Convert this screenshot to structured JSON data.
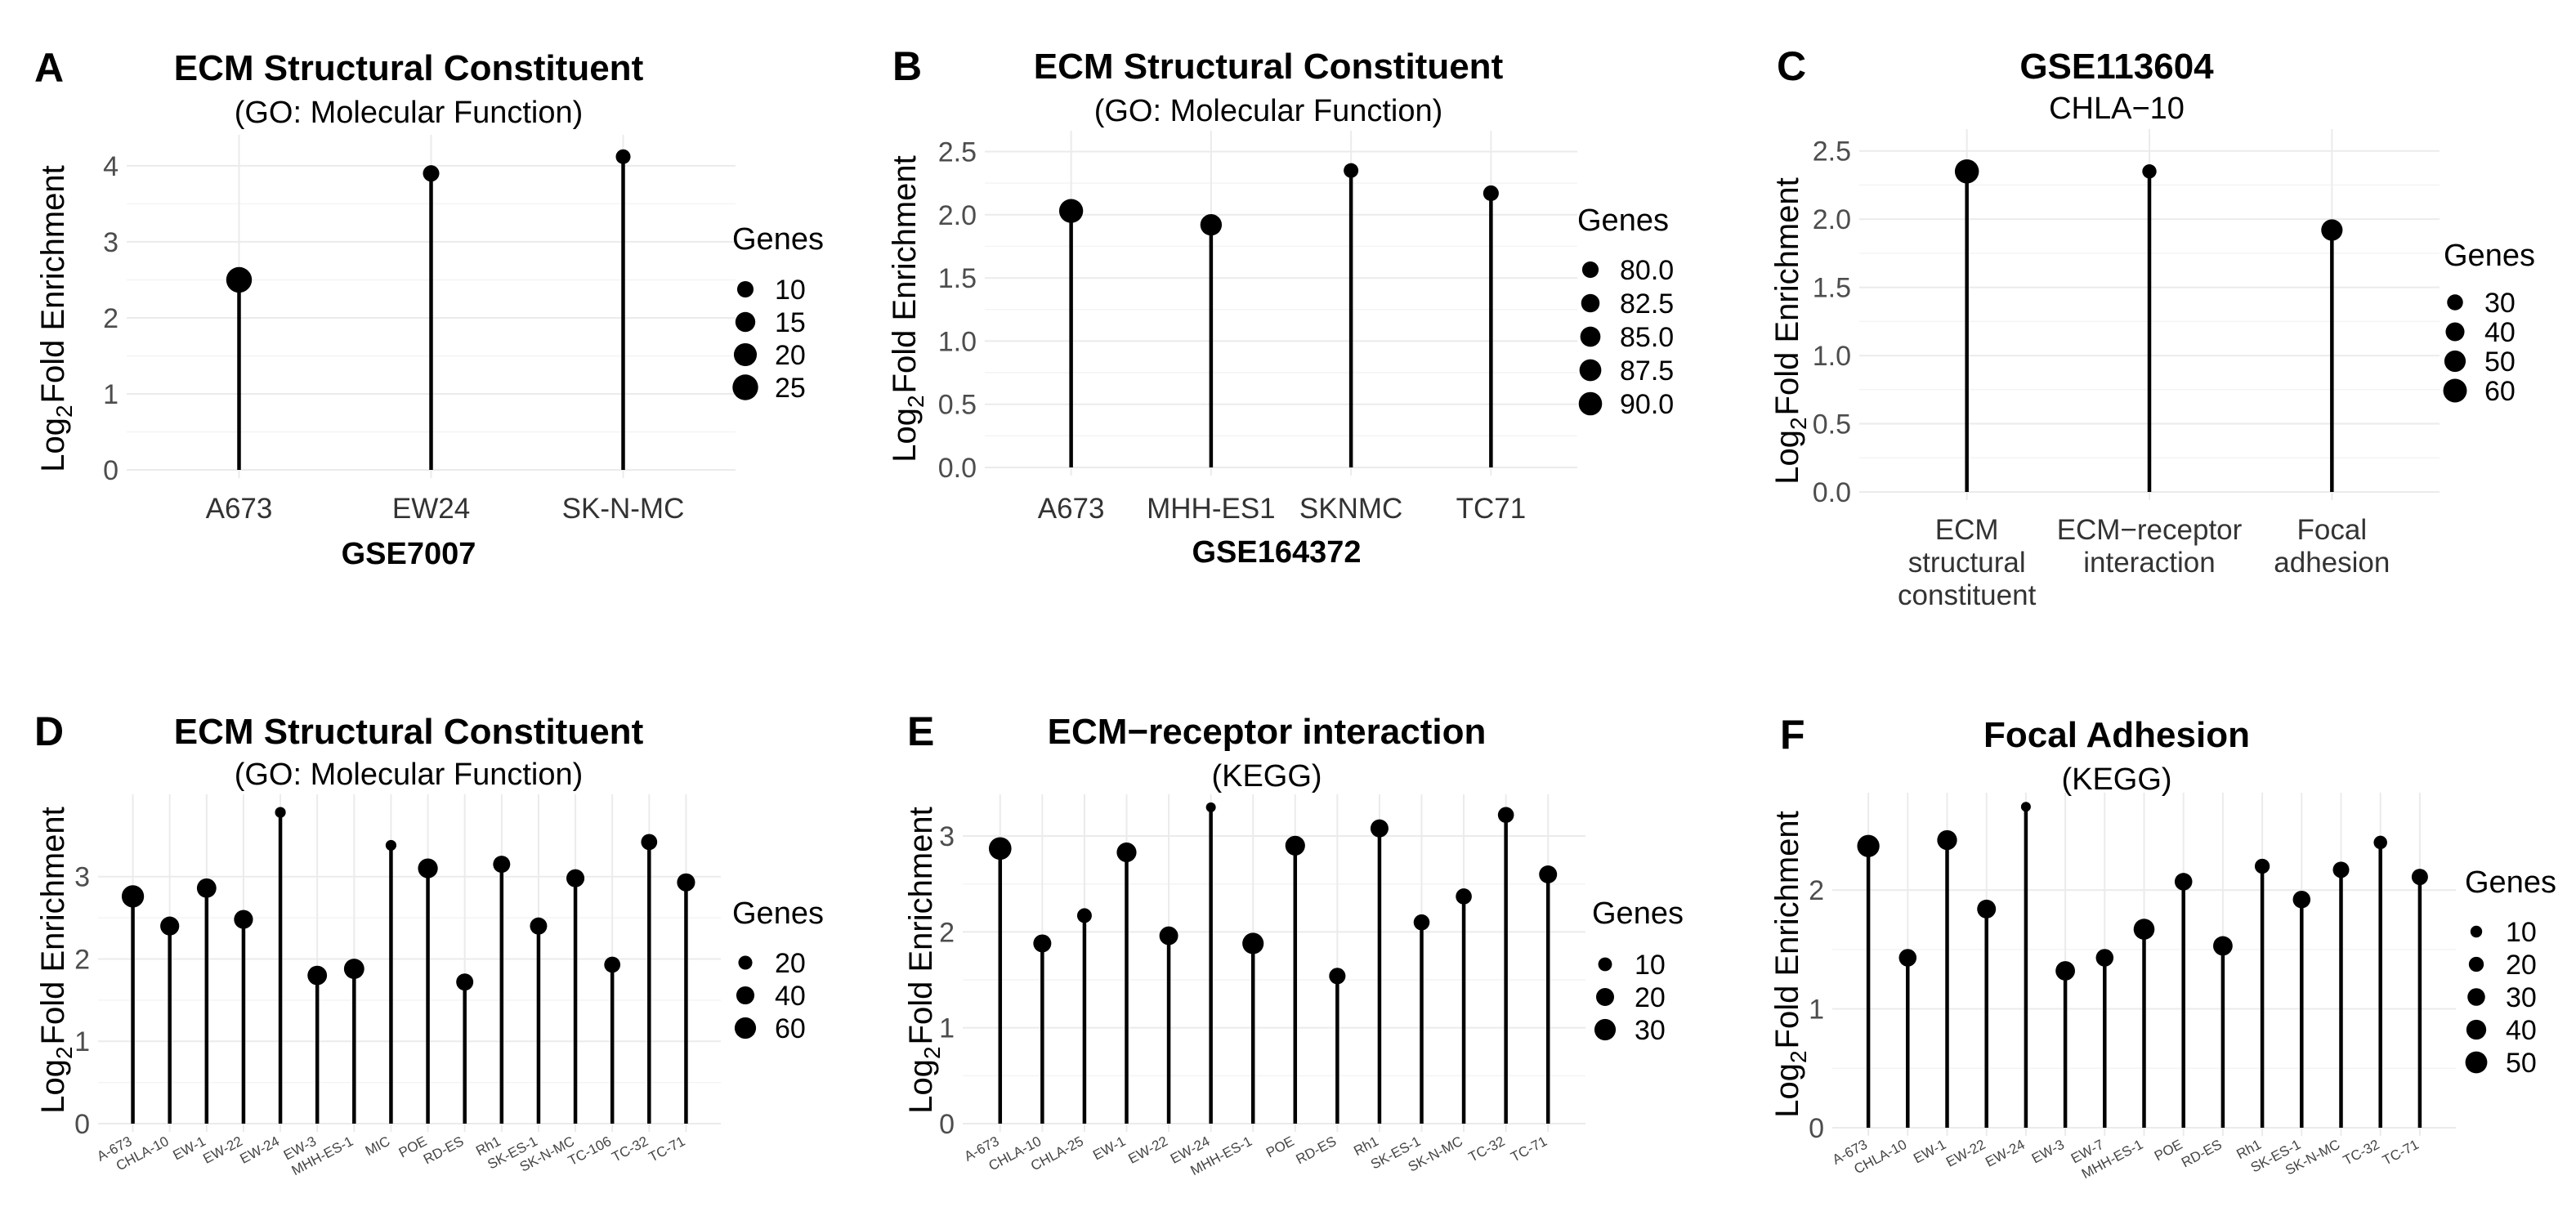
{
  "chart_data": [
    {
      "id": "A",
      "type": "lollipop",
      "letter": "A",
      "title": "ECM Structural Constituent",
      "subtitle": "(GO: Molecular Function)",
      "ylabel_prefix": "Log",
      "ylabel_sub": "2",
      "ylabel_suffix": "Fold Enrichment",
      "xlabel": "GSE7007",
      "ylim": [
        0,
        4.3
      ],
      "yticks": [
        0,
        1,
        2,
        3,
        4
      ],
      "ytick_labels": [
        "0",
        "1",
        "2",
        "3",
        "4"
      ],
      "categories": [
        "A673",
        "EW24",
        "SK-N-MC"
      ],
      "values": [
        2.5,
        3.9,
        4.12
      ],
      "genes": [
        25,
        10,
        8
      ],
      "size_domain": [
        8,
        26
      ],
      "legend": {
        "title": "Genes",
        "values": [
          10,
          15,
          20,
          25
        ],
        "labels": [
          "10",
          "15",
          "20",
          "25"
        ]
      }
    },
    {
      "id": "B",
      "type": "lollipop",
      "letter": "B",
      "title": "ECM Structural Constituent",
      "subtitle": "(GO: Molecular Function)",
      "ylabel_prefix": "Log",
      "ylabel_sub": "2",
      "ylabel_suffix": "Fold Enrichment",
      "xlabel": "GSE164372",
      "ylim": [
        0,
        2.6
      ],
      "yticks": [
        0,
        0.5,
        1,
        1.5,
        2,
        2.5
      ],
      "ytick_labels": [
        "0.0",
        "0.5",
        "1.0",
        "1.5",
        "2.0",
        "2.5"
      ],
      "categories": [
        "A673",
        "MHH-ES1",
        "SKNMC",
        "TC71"
      ],
      "values": [
        2.03,
        1.92,
        2.35,
        2.17
      ],
      "genes": [
        91,
        87,
        78,
        79
      ],
      "size_domain": [
        78,
        92
      ],
      "legend": {
        "title": "Genes",
        "values": [
          80,
          82.5,
          85,
          87.5,
          90
        ],
        "labels": [
          "80.0",
          "82.5",
          "85.0",
          "87.5",
          "90.0"
        ]
      }
    },
    {
      "id": "C",
      "type": "lollipop",
      "letter": "C",
      "title": "GSE113604",
      "subtitle": "CHLA−10",
      "title_plain_subtitle": true,
      "ylabel_prefix": "Log",
      "ylabel_sub": "2",
      "ylabel_suffix": "Fold Enrichment",
      "xlabel": "",
      "ylim": [
        0,
        2.6
      ],
      "yticks": [
        0,
        0.5,
        1,
        1.5,
        2,
        2.5
      ],
      "ytick_labels": [
        "0.0",
        "0.5",
        "1.0",
        "1.5",
        "2.0",
        "2.5"
      ],
      "categories": [
        "ECM structural constituent",
        "ECM−receptor interaction",
        "Focal adhesion"
      ],
      "category_lines": [
        [
          "ECM",
          "structural",
          "constituent"
        ],
        [
          "ECM−receptor",
          "interaction"
        ],
        [
          "Focal",
          "adhesion"
        ]
      ],
      "values": [
        2.35,
        2.35,
        1.92
      ],
      "genes": [
        62,
        25,
        50
      ],
      "size_domain": [
        22,
        64
      ],
      "legend": {
        "title": "Genes",
        "values": [
          30,
          40,
          50,
          60
        ],
        "labels": [
          "30",
          "40",
          "50",
          "60"
        ]
      }
    },
    {
      "id": "D",
      "type": "lollipop",
      "letter": "D",
      "title": "ECM Structural Constituent",
      "subtitle": "(GO: Molecular Function)",
      "ylabel_prefix": "Log",
      "ylabel_sub": "2",
      "ylabel_suffix": "Fold Enrichment",
      "xlabel": "",
      "small_ticks": true,
      "ylim": [
        0,
        3.9
      ],
      "yticks": [
        0,
        1,
        2,
        3
      ],
      "ytick_labels": [
        "0",
        "1",
        "2",
        "3"
      ],
      "categories": [
        "A-673",
        "CHLA-10",
        "EW-1",
        "EW-22",
        "EW-24",
        "EW-3",
        "MHH-ES-1",
        "MIC",
        "POE",
        "RD-ES",
        "Rh1",
        "SK-ES-1",
        "SK-N-MC",
        "TC-106",
        "TC-32",
        "TC-71"
      ],
      "values": [
        2.76,
        2.4,
        2.86,
        2.48,
        3.78,
        1.8,
        1.88,
        3.38,
        3.1,
        1.72,
        3.15,
        2.4,
        2.98,
        1.93,
        3.42,
        2.93
      ],
      "genes": [
        66,
        45,
        48,
        45,
        8,
        48,
        53,
        8,
        50,
        35,
        35,
        35,
        40,
        30,
        30,
        40
      ],
      "size_domain": [
        5,
        70
      ],
      "legend": {
        "title": "Genes",
        "values": [
          20,
          40,
          60
        ],
        "labels": [
          "20",
          "40",
          "60"
        ]
      }
    },
    {
      "id": "E",
      "type": "lollipop",
      "letter": "E",
      "title": "ECM−receptor interaction",
      "subtitle": "(KEGG)",
      "ylabel_prefix": "Log",
      "ylabel_sub": "2",
      "ylabel_suffix": "Fold Enrichment",
      "xlabel": "",
      "small_ticks": true,
      "ylim": [
        0,
        3.35
      ],
      "yticks": [
        0,
        1,
        2,
        3
      ],
      "ytick_labels": [
        "0",
        "1",
        "2",
        "3"
      ],
      "categories": [
        "A-673",
        "CHLA-10",
        "CHLA-25",
        "EW-1",
        "EW-22",
        "EW-24",
        "MHH-ES-1",
        "POE",
        "RD-ES",
        "Rh1",
        "SK-ES-1",
        "SK-N-MC",
        "TC-32",
        "TC-71"
      ],
      "values": [
        2.87,
        1.88,
        2.17,
        2.83,
        1.96,
        3.3,
        1.88,
        2.9,
        1.54,
        3.08,
        2.1,
        2.37,
        3.22,
        2.6
      ],
      "genes": [
        34,
        20,
        12,
        25,
        22,
        3,
        30,
        25,
        16,
        20,
        15,
        15,
        15,
        20
      ],
      "size_domain": [
        3,
        35
      ],
      "legend": {
        "title": "Genes",
        "values": [
          10,
          20,
          30
        ],
        "labels": [
          "10",
          "20",
          "30"
        ]
      }
    },
    {
      "id": "F",
      "type": "lollipop",
      "letter": "F",
      "title": "Focal Adhesion",
      "subtitle": "(KEGG)",
      "ylabel_prefix": "Log",
      "ylabel_sub": "2",
      "ylabel_suffix": "Fold Enrichment",
      "xlabel": "",
      "small_ticks": true,
      "ylim": [
        0,
        2.75
      ],
      "yticks": [
        0,
        1,
        2
      ],
      "ytick_labels": [
        "0",
        "1",
        "2"
      ],
      "categories": [
        "A-673",
        "CHLA-10",
        "EW-1",
        "EW-22",
        "EW-24",
        "EW-3",
        "EW-7",
        "MHH-ES-1",
        "POE",
        "RD-ES",
        "Rh1",
        "SK-ES-1",
        "SK-N-MC",
        "TC-32",
        "TC-71"
      ],
      "values": [
        2.37,
        1.43,
        2.42,
        1.84,
        2.7,
        1.32,
        1.43,
        1.67,
        2.07,
        1.53,
        2.2,
        1.92,
        2.17,
        2.4,
        2.11
      ],
      "genes": [
        52,
        30,
        40,
        35,
        5,
        38,
        30,
        45,
        30,
        38,
        20,
        30,
        25,
        15,
        25
      ],
      "size_domain": [
        5,
        55
      ],
      "legend": {
        "title": "Genes",
        "values": [
          10,
          20,
          30,
          40,
          50
        ],
        "labels": [
          "10",
          "20",
          "30",
          "40",
          "50"
        ]
      }
    }
  ]
}
